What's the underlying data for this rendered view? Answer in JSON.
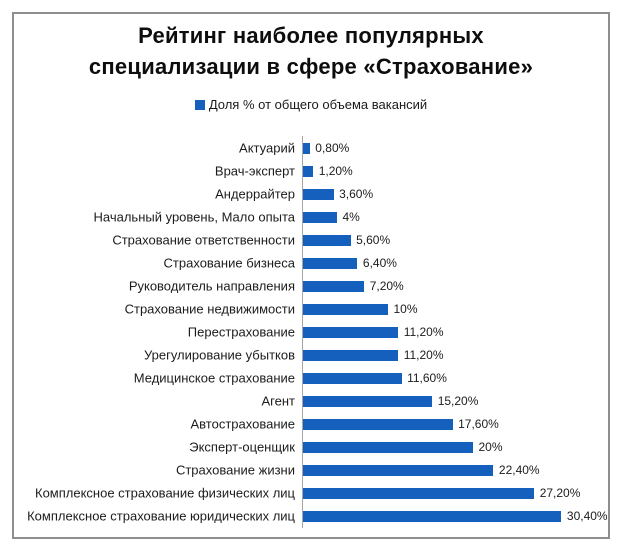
{
  "title": {
    "line1": "Рейтинг наиболее популярных",
    "line2": "специализации в сфере «Страхование»"
  },
  "legend": {
    "label": "Доля % от общего объема вакансий",
    "marker_color": "#1560BD"
  },
  "chart_data": {
    "type": "bar",
    "orientation": "horizontal",
    "title": "Рейтинг наиболее популярных специализации в сфере «Страхование»",
    "legend_entries": [
      "Доля % от общего объема вакансий"
    ],
    "legend_position": "top",
    "categories": [
      "Актуарий",
      "Врач-эксперт",
      "Андеррайтер",
      "Начальный уровень, Мало опыта",
      "Страхование ответственности",
      "Страхование бизнеса",
      "Руководитель направления",
      "Страхование недвижимости",
      "Перестрахование",
      "Урегулирование убытков",
      "Медицинское страхование",
      "Агент",
      "Автострахование",
      "Эксперт-оценщик",
      "Страхование жизни",
      "Комплексное страхование физических лиц",
      "Комплексное страхование юридических лиц"
    ],
    "values": [
      0.8,
      1.2,
      3.6,
      4,
      5.6,
      6.4,
      7.2,
      10,
      11.2,
      11.2,
      11.6,
      15.2,
      17.6,
      20,
      22.4,
      27.2,
      30.4
    ],
    "value_labels": [
      "0,80%",
      "1,20%",
      "3,60%",
      "4%",
      "5,60%",
      "6,40%",
      "7,20%",
      "10%",
      "11,20%",
      "11,20%",
      "11,60%",
      "15,20%",
      "17,60%",
      "20%",
      "22,40%",
      "27,20%",
      "30,40%"
    ],
    "xlabel": "",
    "ylabel": "",
    "xlim": [
      0,
      35
    ],
    "grid": false,
    "bar_color": "#1560BD",
    "axis_line_color": "#a6a6a6"
  }
}
